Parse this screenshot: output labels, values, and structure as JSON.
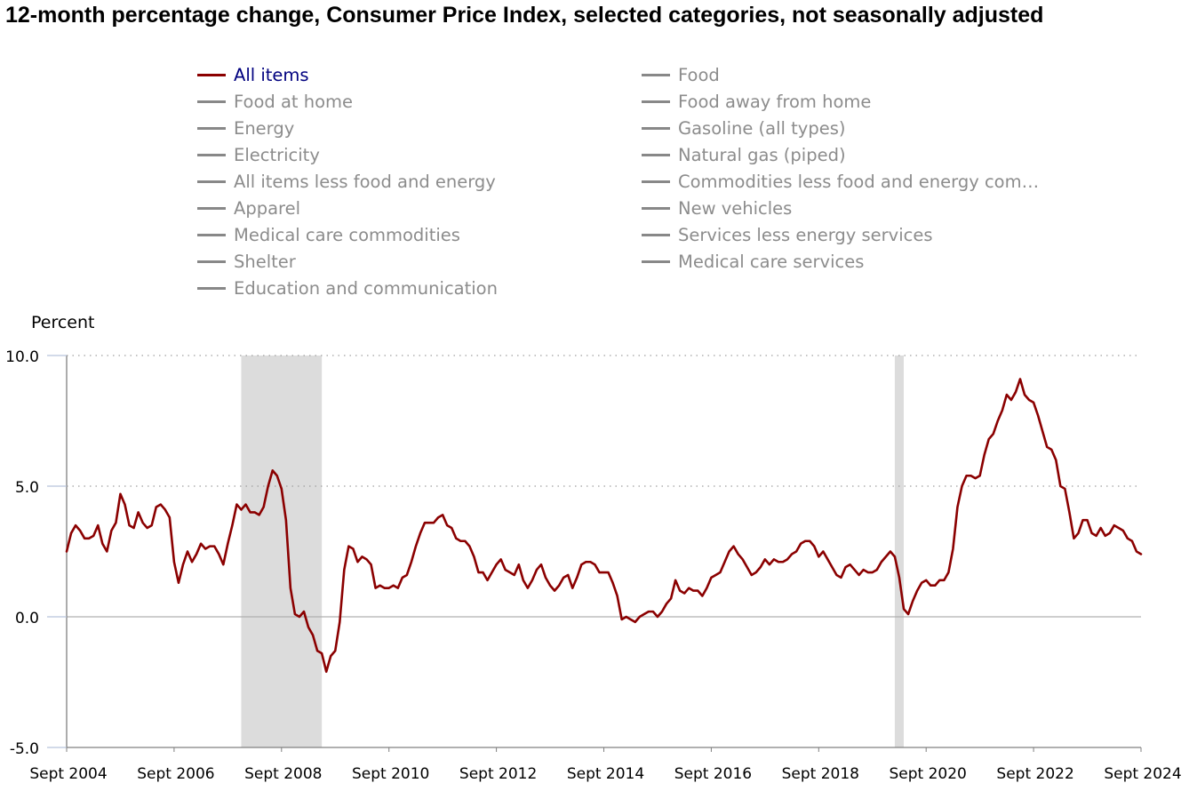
{
  "title": "12-month percentage change, Consumer Price Index, selected categories, not seasonally adjusted",
  "legend": {
    "items": [
      {
        "label": "All items",
        "active": true,
        "color": "#8b0000"
      },
      {
        "label": "Food",
        "active": false,
        "color": "#888888"
      },
      {
        "label": "Food at home",
        "active": false,
        "color": "#888888"
      },
      {
        "label": "Food away from home",
        "active": false,
        "color": "#888888"
      },
      {
        "label": "Energy",
        "active": false,
        "color": "#888888"
      },
      {
        "label": "Gasoline (all types)",
        "active": false,
        "color": "#888888"
      },
      {
        "label": "Electricity",
        "active": false,
        "color": "#888888"
      },
      {
        "label": "Natural gas (piped)",
        "active": false,
        "color": "#888888"
      },
      {
        "label": "All items less food and energy",
        "active": false,
        "color": "#888888"
      },
      {
        "label": "Commodities less food and energy com…",
        "active": false,
        "color": "#888888"
      },
      {
        "label": "Apparel",
        "active": false,
        "color": "#888888"
      },
      {
        "label": "New vehicles",
        "active": false,
        "color": "#888888"
      },
      {
        "label": "Medical care commodities",
        "active": false,
        "color": "#888888"
      },
      {
        "label": "Services less energy services",
        "active": false,
        "color": "#888888"
      },
      {
        "label": "Shelter",
        "active": false,
        "color": "#888888"
      },
      {
        "label": "Medical care services",
        "active": false,
        "color": "#888888"
      },
      {
        "label": "Education and communication",
        "active": false,
        "color": "#888888"
      }
    ]
  },
  "chart_data": {
    "type": "line",
    "title": "12-month percentage change, Consumer Price Index, selected categories, not seasonally adjusted",
    "xlabel": "",
    "ylabel": "Percent",
    "ylim": [
      -5,
      10
    ],
    "xlim": [
      "Sept 2004",
      "Sept 2024"
    ],
    "yticks": [
      "10.0",
      "5.0",
      "0.0",
      "-5.0"
    ],
    "xticks": [
      "Sept 2004",
      "Sept 2006",
      "Sept 2008",
      "Sept 2010",
      "Sept 2012",
      "Sept 2014",
      "Sept 2016",
      "Sept 2018",
      "Sept 2020",
      "Sept 2022",
      "Sept 2024"
    ],
    "grid": "horizontal dotted at 5.0 and 10.0",
    "line_color": "#8b0000",
    "shaded_periods": [
      {
        "start": "Dec 2007",
        "end": "Jun 2009",
        "color": "#dcdcdc"
      },
      {
        "start": "Feb 2020",
        "end": "Apr 2020",
        "color": "#dcdcdc"
      }
    ],
    "series": [
      {
        "name": "All items",
        "start": "Sept 2004",
        "frequency": "monthly",
        "values": [
          2.5,
          3.2,
          3.5,
          3.3,
          3.0,
          3.0,
          3.1,
          3.5,
          2.8,
          2.5,
          3.3,
          3.6,
          4.7,
          4.3,
          3.5,
          3.4,
          4.0,
          3.6,
          3.4,
          3.5,
          4.2,
          4.3,
          4.1,
          3.8,
          2.1,
          1.3,
          2.0,
          2.5,
          2.1,
          2.4,
          2.8,
          2.6,
          2.7,
          2.7,
          2.4,
          2.0,
          2.8,
          3.5,
          4.3,
          4.1,
          4.3,
          4.0,
          4.0,
          3.9,
          4.2,
          5.0,
          5.6,
          5.4,
          4.9,
          3.7,
          1.1,
          0.1,
          0.0,
          0.2,
          -0.4,
          -0.7,
          -1.3,
          -1.4,
          -2.1,
          -1.5,
          -1.3,
          -0.2,
          1.8,
          2.7,
          2.6,
          2.1,
          2.3,
          2.2,
          2.0,
          1.1,
          1.2,
          1.1,
          1.1,
          1.2,
          1.1,
          1.5,
          1.6,
          2.1,
          2.7,
          3.2,
          3.6,
          3.6,
          3.6,
          3.8,
          3.9,
          3.5,
          3.4,
          3.0,
          2.9,
          2.9,
          2.7,
          2.3,
          1.7,
          1.7,
          1.4,
          1.7,
          2.0,
          2.2,
          1.8,
          1.7,
          1.6,
          2.0,
          1.4,
          1.1,
          1.4,
          1.8,
          2.0,
          1.5,
          1.2,
          1.0,
          1.2,
          1.5,
          1.6,
          1.1,
          1.5,
          2.0,
          2.1,
          2.1,
          2.0,
          1.7,
          1.7,
          1.7,
          1.3,
          0.8,
          -0.1,
          0.0,
          -0.1,
          -0.2,
          0.0,
          0.1,
          0.2,
          0.2,
          0.0,
          0.2,
          0.5,
          0.7,
          1.4,
          1.0,
          0.9,
          1.1,
          1.0,
          1.0,
          0.8,
          1.1,
          1.5,
          1.6,
          1.7,
          2.1,
          2.5,
          2.7,
          2.4,
          2.2,
          1.9,
          1.6,
          1.7,
          1.9,
          2.2,
          2.0,
          2.2,
          2.1,
          2.1,
          2.2,
          2.4,
          2.5,
          2.8,
          2.9,
          2.9,
          2.7,
          2.3,
          2.5,
          2.2,
          1.9,
          1.6,
          1.5,
          1.9,
          2.0,
          1.8,
          1.6,
          1.8,
          1.7,
          1.7,
          1.8,
          2.1,
          2.3,
          2.5,
          2.3,
          1.5,
          0.3,
          0.1,
          0.6,
          1.0,
          1.3,
          1.4,
          1.2,
          1.2,
          1.4,
          1.4,
          1.7,
          2.6,
          4.2,
          5.0,
          5.4,
          5.4,
          5.3,
          5.4,
          6.2,
          6.8,
          7.0,
          7.5,
          7.9,
          8.5,
          8.3,
          8.6,
          9.1,
          8.5,
          8.3,
          8.2,
          7.7,
          7.1,
          6.5,
          6.4,
          6.0,
          5.0,
          4.9,
          4.0,
          3.0,
          3.2,
          3.7,
          3.7,
          3.2,
          3.1,
          3.4,
          3.1,
          3.2,
          3.5,
          3.4,
          3.3,
          3.0,
          2.9,
          2.5,
          2.4
        ]
      }
    ]
  }
}
